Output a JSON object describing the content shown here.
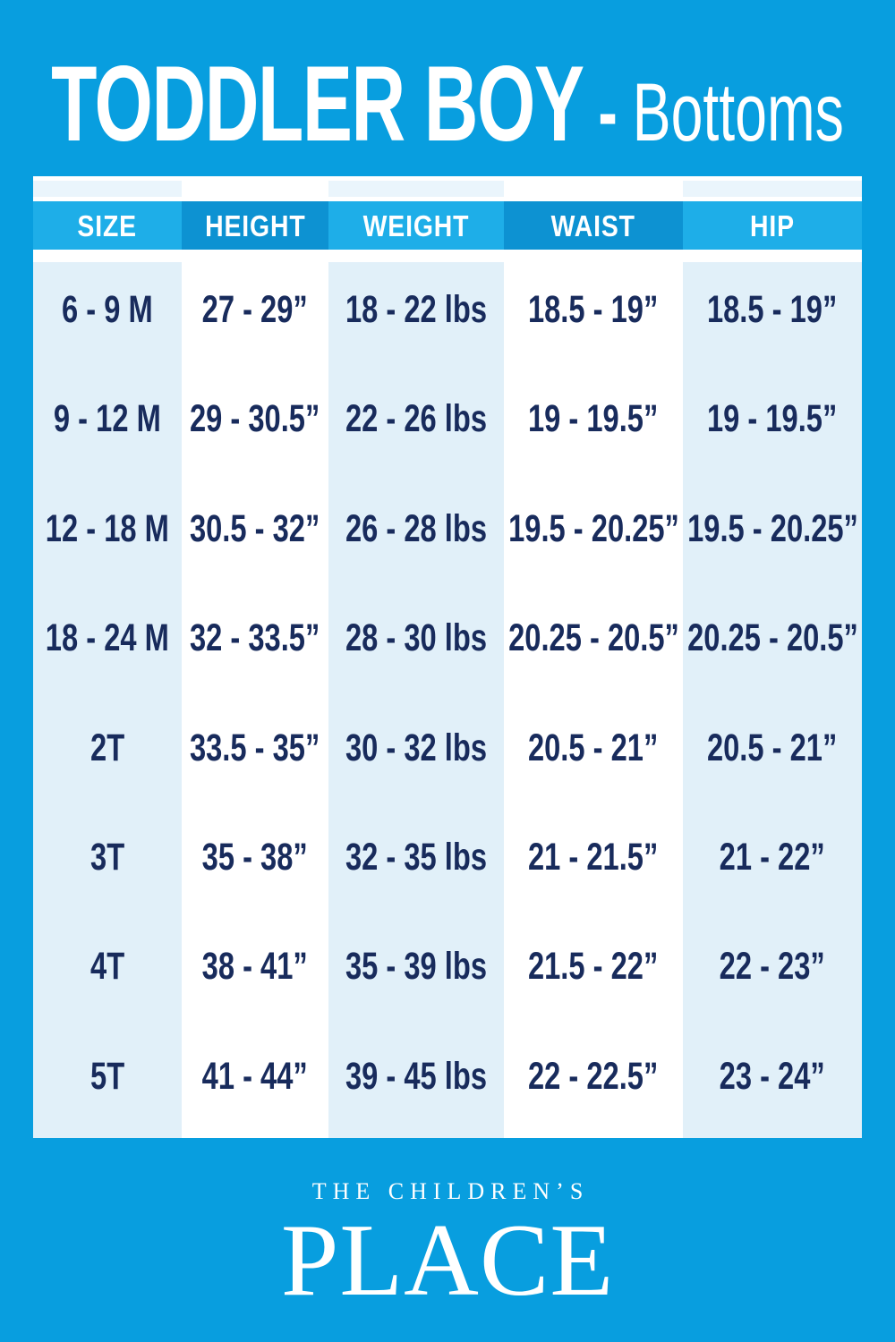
{
  "colors": {
    "background": "#089EDF",
    "header_cell_light": "#1EAEE8",
    "header_cell_dark": "#0D92D2",
    "column_tint": "#E1F0F9",
    "top_strip_tint": "#EAF5FC",
    "cell_text": "#182B5C",
    "text_white": "#FFFFFF"
  },
  "title": {
    "main": "TODDLER BOY",
    "separator": "-",
    "sub": "Bottoms"
  },
  "chart_data": {
    "type": "table",
    "title": "TODDLER BOY - Bottoms",
    "columns": [
      "SIZE",
      "HEIGHT",
      "WEIGHT",
      "WAIST",
      "HIP"
    ],
    "rows": [
      [
        "6 - 9 M",
        "27 - 29”",
        "18 - 22 lbs",
        "18.5 - 19”",
        "18.5 - 19”"
      ],
      [
        "9 - 12 M",
        "29 - 30.5”",
        "22 - 26 lbs",
        "19 - 19.5”",
        "19 - 19.5”"
      ],
      [
        "12 - 18 M",
        "30.5 - 32”",
        "26 - 28 lbs",
        "19.5 - 20.25”",
        "19.5 - 20.25”"
      ],
      [
        "18 - 24 M",
        "32 - 33.5”",
        "28 - 30 lbs",
        "20.25 - 20.5”",
        "20.25 - 20.5”"
      ],
      [
        "2T",
        "33.5 - 35”",
        "30 - 32 lbs",
        "20.5 - 21”",
        "20.5 - 21”"
      ],
      [
        "3T",
        "35 - 38”",
        "32 - 35 lbs",
        "21 - 21.5”",
        "21 - 22”"
      ],
      [
        "4T",
        "38 - 41”",
        "35 - 39 lbs",
        "21.5 - 22”",
        "22 - 23”"
      ],
      [
        "5T",
        "41 - 44”",
        "39 - 45 lbs",
        "22 - 22.5”",
        "23 - 24”"
      ]
    ]
  },
  "logo": {
    "line1": "THE CHILDREN’S",
    "line2": "PLACE"
  }
}
